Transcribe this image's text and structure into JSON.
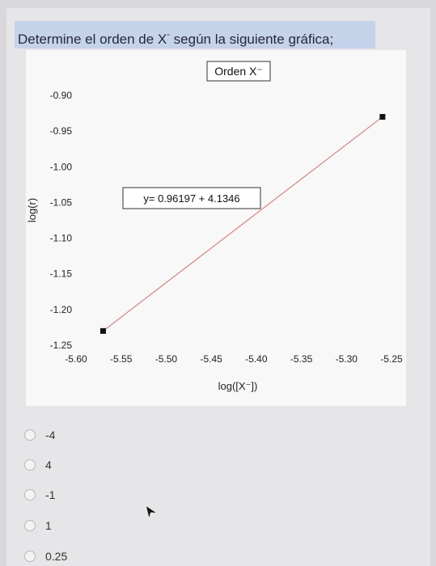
{
  "question": {
    "text_before": "Determine el orden de X",
    "superscript": "-",
    "text_after": " según la siguiente gráfica;"
  },
  "options": [
    {
      "label": "-4"
    },
    {
      "label": "4"
    },
    {
      "label": "-1"
    },
    {
      "label": "1"
    },
    {
      "label": "0.25"
    }
  ],
  "chart_data": {
    "type": "line",
    "title": "Orden X⁻",
    "xlabel": "log([X⁻])",
    "ylabel": "log(r)",
    "equation": "y= 0.96197 + 4.1346",
    "xlim": [
      -5.6,
      -5.25
    ],
    "ylim": [
      -1.25,
      -0.9
    ],
    "x_ticks": [
      "-5.60",
      "-5.55",
      "-5.50",
      "-5.45",
      "-5.40",
      "-5.35",
      "-5.30",
      "-5.25"
    ],
    "y_ticks": [
      "-0.90",
      "-0.95",
      "-1.00",
      "-1.05",
      "-1.10",
      "-1.15",
      "-1.20",
      "-1.25"
    ],
    "series": [
      {
        "x": [
          -5.57,
          -5.26
        ],
        "y": [
          -1.23,
          -0.93
        ],
        "color": "#d98a8a",
        "marker_color": "#111111"
      }
    ],
    "grid": false
  }
}
